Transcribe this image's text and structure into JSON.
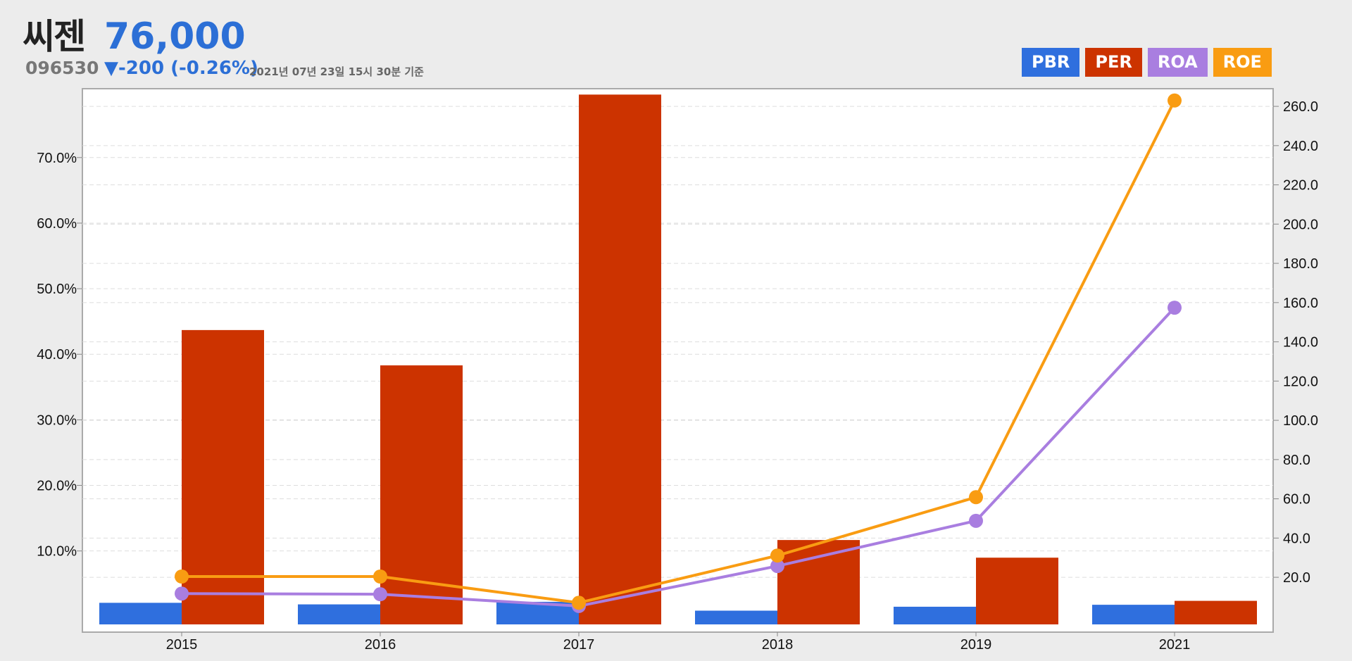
{
  "header": {
    "name": "씨젠",
    "price": "76,000",
    "code": "096530",
    "change": "▼-200 (-0.26%)",
    "timestamp": "2021년 07년 23일 15시 30분 기준"
  },
  "colors": {
    "PBR": "#2f6fde",
    "PER": "#cc3300",
    "ROA": "#a97ee0",
    "ROE": "#f99c12"
  },
  "legend": [
    {
      "label": "PBR",
      "color": "#2f6fde"
    },
    {
      "label": "PER",
      "color": "#cc3300"
    },
    {
      "label": "ROA",
      "color": "#a97ee0"
    },
    {
      "label": "ROE",
      "color": "#f99c12"
    }
  ],
  "chart_data": {
    "type": "bar+line",
    "categories": [
      "2015",
      "2016",
      "2017",
      "2018",
      "2019",
      "2021"
    ],
    "left_axis": {
      "min": -1.2,
      "max": 80.5,
      "ticks": [
        10,
        20,
        30,
        40,
        50,
        60,
        70
      ],
      "tick_labels": [
        "10.0%",
        "20.0%",
        "30.0%",
        "40.0%",
        "50.0%",
        "60.0%",
        "70.0%"
      ]
    },
    "right_axis": {
      "min": -4,
      "max": 269,
      "ticks": [
        20,
        40,
        60,
        80,
        100,
        120,
        140,
        160,
        180,
        200,
        220,
        240,
        260
      ],
      "tick_labels": [
        "20.0",
        "40.0",
        "60.0",
        "80.0",
        "100.0",
        "120.0",
        "140.0",
        "160.0",
        "180.0",
        "200.0",
        "220.0",
        "240.0",
        "260.0"
      ]
    },
    "series": [
      {
        "name": "PBR",
        "type": "bar",
        "axis": "right",
        "values": [
          7.0,
          6.2,
          7.5,
          3.0,
          5.0,
          6.0
        ]
      },
      {
        "name": "PER",
        "type": "bar",
        "axis": "right",
        "values": [
          146,
          128,
          266,
          39,
          30,
          8
        ]
      },
      {
        "name": "ROA",
        "type": "line",
        "axis": "left",
        "values": [
          3.5,
          3.4,
          1.6,
          7.7,
          14.6,
          47.1
        ]
      },
      {
        "name": "ROE",
        "type": "line",
        "axis": "left",
        "values": [
          6.1,
          6.1,
          2.1,
          9.3,
          18.2,
          78.7
        ]
      }
    ]
  }
}
